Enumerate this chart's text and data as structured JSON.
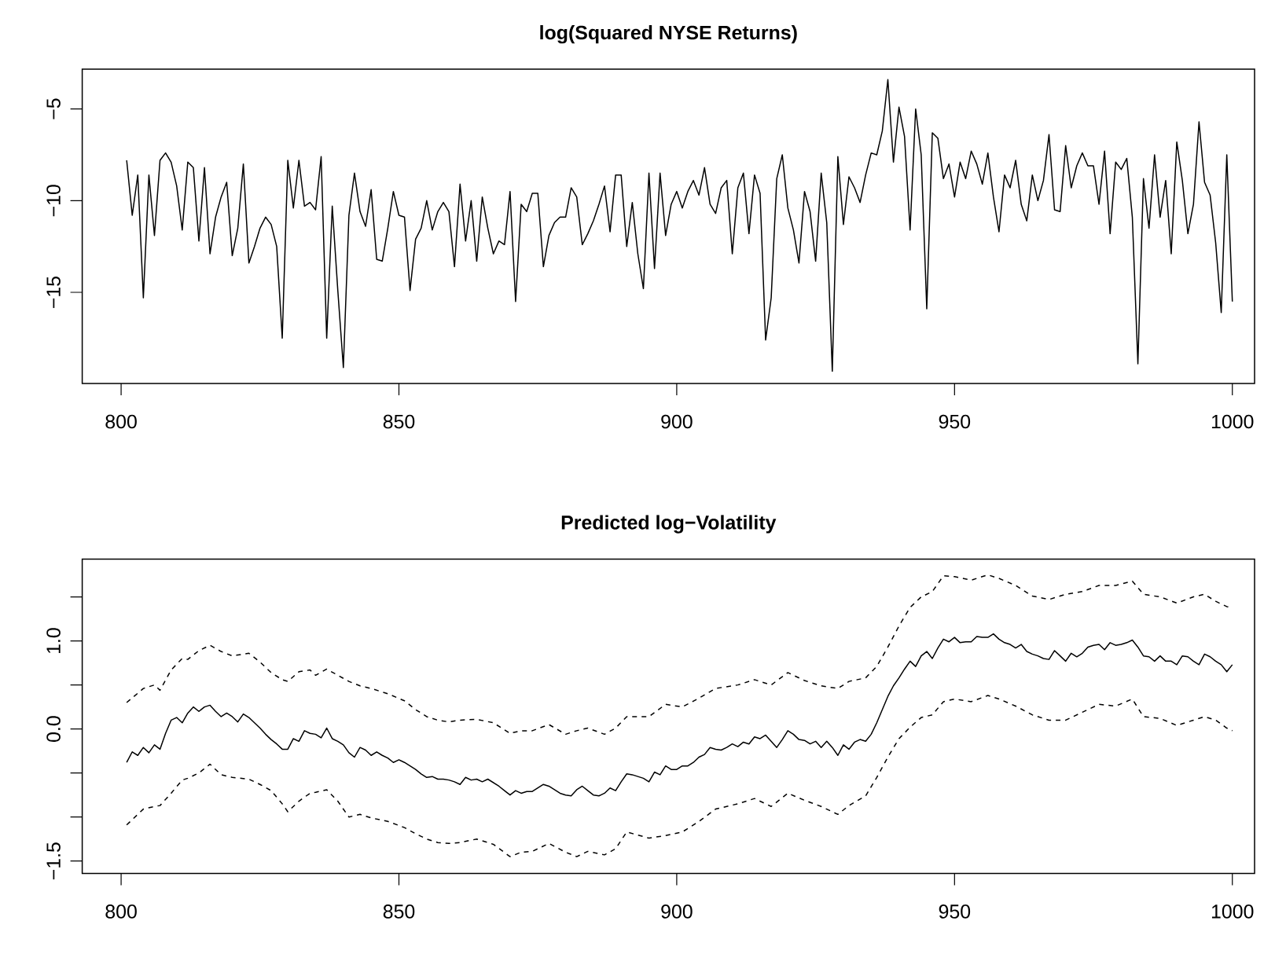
{
  "chart_data": [
    {
      "type": "line",
      "title": "log(Squared NYSE Returns)",
      "color": "#000000",
      "x": [
        801,
        802,
        803,
        804,
        805,
        806,
        807,
        808,
        809,
        810,
        811,
        812,
        813,
        814,
        815,
        816,
        817,
        818,
        819,
        820,
        821,
        822,
        823,
        824,
        825,
        826,
        827,
        828,
        829,
        830,
        831,
        832,
        833,
        834,
        835,
        836,
        837,
        838,
        839,
        840,
        841,
        842,
        843,
        844,
        845,
        846,
        847,
        848,
        849,
        850,
        851,
        852,
        853,
        854,
        855,
        856,
        857,
        858,
        859,
        860,
        861,
        862,
        863,
        864,
        865,
        866,
        867,
        868,
        869,
        870,
        871,
        872,
        873,
        874,
        875,
        876,
        877,
        878,
        879,
        880,
        881,
        882,
        883,
        884,
        885,
        886,
        887,
        888,
        889,
        890,
        891,
        892,
        893,
        894,
        895,
        896,
        897,
        898,
        899,
        900,
        901,
        902,
        903,
        904,
        905,
        906,
        907,
        908,
        909,
        910,
        911,
        912,
        913,
        914,
        915,
        916,
        917,
        918,
        919,
        920,
        921,
        922,
        923,
        924,
        925,
        926,
        927,
        928,
        929,
        930,
        931,
        932,
        933,
        934,
        935,
        936,
        937,
        938,
        939,
        940,
        941,
        942,
        943,
        944,
        945,
        946,
        947,
        948,
        949,
        950,
        951,
        952,
        953,
        954,
        955,
        956,
        957,
        958,
        959,
        960,
        961,
        962,
        963,
        964,
        965,
        966,
        967,
        968,
        969,
        970,
        971,
        972,
        973,
        974,
        975,
        976,
        977,
        978,
        979,
        980,
        981,
        982,
        983,
        984,
        985,
        986,
        987,
        988,
        989,
        990,
        991,
        992,
        993,
        994,
        995,
        996,
        997,
        998,
        999,
        1000
      ],
      "values": [
        -7.8,
        -10.8,
        -8.6,
        -15.3,
        -8.6,
        -11.9,
        -7.8,
        -7.4,
        -7.9,
        -9.2,
        -11.6,
        -7.9,
        -8.2,
        -12.2,
        -8.2,
        -12.9,
        -10.9,
        -9.8,
        -9.0,
        -13.0,
        -11.5,
        -8.0,
        -13.4,
        -12.5,
        -11.5,
        -10.9,
        -11.3,
        -12.5,
        -17.5,
        -7.8,
        -10.4,
        -7.8,
        -10.3,
        -10.1,
        -10.5,
        -7.6,
        -17.5,
        -10.3,
        -14.9,
        -19.1,
        -10.8,
        -8.5,
        -10.6,
        -11.4,
        -9.4,
        -13.2,
        -13.3,
        -11.5,
        -9.5,
        -10.8,
        -10.9,
        -14.9,
        -12.1,
        -11.5,
        -10.0,
        -11.6,
        -10.6,
        -10.1,
        -10.6,
        -13.6,
        -9.1,
        -12.2,
        -10.0,
        -13.3,
        -9.8,
        -11.5,
        -12.9,
        -12.2,
        -12.4,
        -9.5,
        -15.5,
        -10.2,
        -10.6,
        -9.6,
        -9.6,
        -13.6,
        -11.9,
        -11.2,
        -10.9,
        -10.9,
        -9.3,
        -9.8,
        -12.4,
        -11.8,
        -11.1,
        -10.2,
        -9.2,
        -11.7,
        -8.6,
        -8.6,
        -12.5,
        -10.1,
        -12.9,
        -14.8,
        -8.5,
        -13.7,
        -8.5,
        -11.9,
        -10.2,
        -9.5,
        -10.4,
        -9.5,
        -8.9,
        -9.7,
        -8.2,
        -10.2,
        -10.7,
        -9.3,
        -8.9,
        -12.9,
        -9.3,
        -8.5,
        -11.8,
        -8.6,
        -9.6,
        -17.6,
        -15.3,
        -8.8,
        -7.5,
        -10.4,
        -11.6,
        -13.4,
        -9.5,
        -10.6,
        -13.3,
        -8.5,
        -11.2,
        -19.3,
        -7.6,
        -11.3,
        -8.7,
        -9.3,
        -10.1,
        -8.6,
        -7.4,
        -7.5,
        -6.2,
        -3.4,
        -7.9,
        -4.9,
        -6.5,
        -11.6,
        -5.0,
        -7.5,
        -15.9,
        -6.3,
        -6.6,
        -8.8,
        -8.0,
        -9.8,
        -7.9,
        -8.8,
        -7.3,
        -8.0,
        -9.1,
        -7.4,
        -9.8,
        -11.7,
        -8.6,
        -9.3,
        -7.8,
        -10.2,
        -11.1,
        -8.6,
        -10.0,
        -8.9,
        -6.4,
        -10.5,
        -10.6,
        -7.0,
        -9.3,
        -8.1,
        -7.4,
        -8.1,
        -8.1,
        -10.2,
        -7.3,
        -11.8,
        -7.9,
        -8.3,
        -7.7,
        -10.9,
        -18.9,
        -8.8,
        -11.5,
        -7.5,
        -10.9,
        -8.9,
        -12.9,
        -6.8,
        -8.9,
        -11.8,
        -10.2,
        -5.7,
        -9.0,
        -9.7,
        -12.3,
        -16.1,
        -7.5,
        -15.5
      ],
      "xlim": [
        793,
        1004
      ],
      "ylim": [
        -19.97,
        -2.83
      ],
      "xticks": [
        800,
        850,
        900,
        950,
        1000
      ],
      "yticks": [
        {
          "value": -15,
          "label": "−15"
        },
        {
          "value": -10,
          "label": "−10"
        },
        {
          "value": -5,
          "label": "−5"
        }
      ]
    },
    {
      "type": "line",
      "title": "Predicted log−Volatility",
      "series": [
        {
          "color": "#000000",
          "line_style": "solid",
          "x": [
            801,
            802,
            803,
            804,
            805,
            806,
            807,
            808,
            809,
            810,
            811,
            812,
            813,
            814,
            815,
            816,
            817,
            818,
            819,
            820,
            821,
            822,
            823,
            824,
            825,
            826,
            827,
            828,
            829,
            830,
            831,
            832,
            833,
            834,
            835,
            836,
            837,
            838,
            839,
            840,
            841,
            842,
            843,
            844,
            845,
            846,
            847,
            848,
            849,
            850,
            851,
            852,
            853,
            854,
            855,
            856,
            857,
            858,
            859,
            860,
            861,
            862,
            863,
            864,
            865,
            866,
            867,
            868,
            869,
            870,
            871,
            872,
            873,
            874,
            875,
            876,
            877,
            878,
            879,
            880,
            881,
            882,
            883,
            884,
            885,
            886,
            887,
            888,
            889,
            890,
            891,
            892,
            893,
            894,
            895,
            896,
            897,
            898,
            899,
            900,
            901,
            902,
            903,
            904,
            905,
            906,
            907,
            908,
            909,
            910,
            911,
            912,
            913,
            914,
            915,
            916,
            917,
            918,
            919,
            920,
            921,
            922,
            923,
            924,
            925,
            926,
            927,
            928,
            929,
            930,
            931,
            932,
            933,
            934,
            935,
            936,
            937,
            938,
            939,
            940,
            941,
            942,
            943,
            944,
            945,
            946,
            947,
            948,
            949,
            950,
            951,
            952,
            953,
            954,
            955,
            956,
            957,
            958,
            959,
            960,
            961,
            962,
            963,
            964,
            965,
            966,
            967,
            968,
            969,
            970,
            971,
            972,
            973,
            974,
            975,
            976,
            977,
            978,
            979,
            980,
            981,
            982,
            983,
            984,
            985,
            986,
            987,
            988,
            989,
            990,
            991,
            992,
            993,
            994,
            995,
            996,
            997,
            998,
            999,
            1000
          ],
          "values": [
            -0.38,
            -0.26,
            -0.3,
            -0.21,
            -0.27,
            -0.18,
            -0.23,
            -0.05,
            0.1,
            0.13,
            0.07,
            0.18,
            0.25,
            0.2,
            0.25,
            0.27,
            0.2,
            0.14,
            0.18,
            0.14,
            0.08,
            0.17,
            0.13,
            0.07,
            0.01,
            -0.06,
            -0.12,
            -0.17,
            -0.23,
            -0.23,
            -0.11,
            -0.14,
            -0.02,
            -0.05,
            -0.06,
            -0.1,
            0.01,
            -0.11,
            -0.14,
            -0.18,
            -0.27,
            -0.32,
            -0.21,
            -0.24,
            -0.3,
            -0.26,
            -0.3,
            -0.33,
            -0.38,
            -0.35,
            -0.38,
            -0.42,
            -0.46,
            -0.51,
            -0.55,
            -0.54,
            -0.57,
            -0.57,
            -0.58,
            -0.6,
            -0.63,
            -0.55,
            -0.58,
            -0.57,
            -0.6,
            -0.57,
            -0.61,
            -0.65,
            -0.7,
            -0.75,
            -0.7,
            -0.73,
            -0.71,
            -0.71,
            -0.67,
            -0.63,
            -0.65,
            -0.69,
            -0.73,
            -0.75,
            -0.76,
            -0.69,
            -0.65,
            -0.7,
            -0.75,
            -0.76,
            -0.73,
            -0.67,
            -0.7,
            -0.6,
            -0.51,
            -0.52,
            -0.54,
            -0.56,
            -0.6,
            -0.49,
            -0.52,
            -0.42,
            -0.46,
            -0.46,
            -0.42,
            -0.42,
            -0.38,
            -0.32,
            -0.29,
            -0.21,
            -0.23,
            -0.24,
            -0.21,
            -0.17,
            -0.2,
            -0.15,
            -0.17,
            -0.09,
            -0.11,
            -0.07,
            -0.14,
            -0.21,
            -0.12,
            -0.02,
            -0.06,
            -0.12,
            -0.13,
            -0.17,
            -0.14,
            -0.21,
            -0.14,
            -0.21,
            -0.3,
            -0.18,
            -0.23,
            -0.15,
            -0.12,
            -0.14,
            -0.06,
            0.07,
            0.22,
            0.37,
            0.49,
            0.58,
            0.68,
            0.77,
            0.71,
            0.83,
            0.88,
            0.8,
            0.92,
            1.02,
            0.99,
            1.04,
            0.98,
            0.99,
            0.99,
            1.05,
            1.04,
            1.04,
            1.08,
            1.02,
            0.98,
            0.96,
            0.92,
            0.96,
            0.88,
            0.85,
            0.83,
            0.8,
            0.79,
            0.89,
            0.83,
            0.77,
            0.86,
            0.82,
            0.86,
            0.93,
            0.95,
            0.96,
            0.9,
            0.98,
            0.95,
            0.96,
            0.98,
            1.01,
            0.93,
            0.83,
            0.82,
            0.77,
            0.83,
            0.77,
            0.77,
            0.73,
            0.83,
            0.82,
            0.77,
            0.73,
            0.85,
            0.82,
            0.77,
            0.73,
            0.65,
            0.73
          ]
        },
        {
          "color": "#000000",
          "line_style": "dashed",
          "x": [
            801,
            804,
            806,
            807,
            809,
            811,
            812,
            814,
            816,
            818,
            820,
            823,
            825,
            827,
            829,
            830,
            832,
            834,
            835,
            837,
            839,
            841,
            843,
            845,
            848,
            851,
            853,
            855,
            857,
            859,
            861,
            864,
            867,
            870,
            872,
            874,
            877,
            880,
            882,
            884,
            887,
            889,
            891,
            895,
            898,
            901,
            904,
            907,
            911,
            914,
            917,
            920,
            923,
            926,
            929,
            931,
            934,
            936,
            938,
            940,
            942,
            944,
            946,
            948,
            950,
            953,
            956,
            958,
            961,
            964,
            967,
            970,
            973,
            976,
            979,
            982,
            984,
            987,
            990,
            993,
            995,
            997,
            999,
            1000
          ],
          "values": [
            0.3,
            0.46,
            0.5,
            0.44,
            0.67,
            0.8,
            0.79,
            0.89,
            0.95,
            0.88,
            0.83,
            0.86,
            0.76,
            0.64,
            0.56,
            0.54,
            0.65,
            0.67,
            0.61,
            0.68,
            0.61,
            0.54,
            0.49,
            0.46,
            0.4,
            0.32,
            0.22,
            0.14,
            0.1,
            0.08,
            0.1,
            0.11,
            0.07,
            -0.05,
            -0.02,
            -0.02,
            0.05,
            -0.06,
            -0.02,
            0.01,
            -0.06,
            0.01,
            0.14,
            0.14,
            0.28,
            0.25,
            0.35,
            0.46,
            0.5,
            0.56,
            0.5,
            0.64,
            0.55,
            0.49,
            0.46,
            0.54,
            0.58,
            0.71,
            0.93,
            1.17,
            1.38,
            1.5,
            1.56,
            1.74,
            1.73,
            1.69,
            1.75,
            1.71,
            1.63,
            1.51,
            1.47,
            1.53,
            1.56,
            1.63,
            1.63,
            1.68,
            1.53,
            1.5,
            1.43,
            1.5,
            1.53,
            1.45,
            1.39,
            1.38
          ]
        },
        {
          "color": "#000000",
          "line_style": "dashed",
          "x": [
            801,
            804,
            806,
            807,
            809,
            811,
            812,
            814,
            816,
            818,
            820,
            823,
            825,
            827,
            829,
            830,
            832,
            834,
            835,
            837,
            839,
            841,
            843,
            845,
            848,
            851,
            853,
            855,
            857,
            859,
            861,
            864,
            867,
            870,
            872,
            874,
            877,
            880,
            882,
            884,
            887,
            889,
            891,
            895,
            898,
            901,
            904,
            907,
            911,
            914,
            917,
            920,
            923,
            926,
            929,
            931,
            934,
            936,
            938,
            940,
            942,
            944,
            946,
            948,
            950,
            953,
            956,
            958,
            961,
            964,
            967,
            970,
            973,
            976,
            979,
            982,
            984,
            987,
            990,
            993,
            995,
            997,
            999,
            1000
          ],
          "values": [
            -1.09,
            -0.91,
            -0.88,
            -0.87,
            -0.73,
            -0.58,
            -0.56,
            -0.5,
            -0.4,
            -0.52,
            -0.55,
            -0.57,
            -0.63,
            -0.7,
            -0.85,
            -0.94,
            -0.82,
            -0.73,
            -0.72,
            -0.69,
            -0.82,
            -1.0,
            -0.97,
            -1.01,
            -1.05,
            -1.12,
            -1.19,
            -1.25,
            -1.29,
            -1.3,
            -1.29,
            -1.25,
            -1.31,
            -1.45,
            -1.4,
            -1.39,
            -1.3,
            -1.4,
            -1.45,
            -1.39,
            -1.43,
            -1.36,
            -1.17,
            -1.24,
            -1.21,
            -1.17,
            -1.05,
            -0.91,
            -0.85,
            -0.79,
            -0.88,
            -0.73,
            -0.81,
            -0.88,
            -0.97,
            -0.87,
            -0.76,
            -0.55,
            -0.32,
            -0.11,
            0.02,
            0.13,
            0.16,
            0.31,
            0.34,
            0.31,
            0.38,
            0.34,
            0.26,
            0.16,
            0.1,
            0.1,
            0.19,
            0.28,
            0.26,
            0.34,
            0.14,
            0.12,
            0.04,
            0.1,
            0.14,
            0.1,
            0.01,
            -0.02
          ]
        }
      ],
      "xlim": [
        793,
        1004
      ],
      "ylim": [
        -1.64,
        1.93
      ],
      "xticks": [
        800,
        850,
        900,
        950,
        1000
      ],
      "yticks": [
        {
          "value": -1.5,
          "label": "−1.5"
        },
        {
          "value": -1.0,
          "label": null
        },
        {
          "value": -0.5,
          "label": null
        },
        {
          "value": 0.0,
          "label": "0.0"
        },
        {
          "value": 0.5,
          "label": null
        },
        {
          "value": 1.0,
          "label": "1.0"
        },
        {
          "value": 1.5,
          "label": null
        }
      ]
    }
  ]
}
